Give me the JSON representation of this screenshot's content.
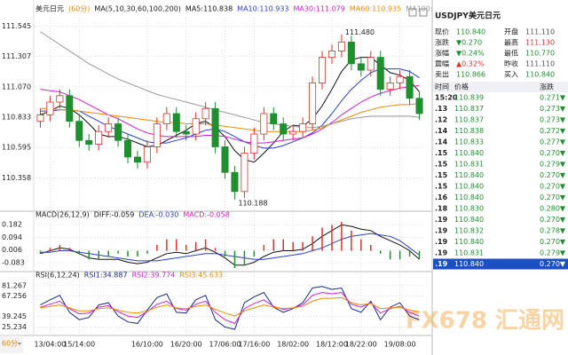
{
  "chart_data": [
    {
      "type": "candlestick",
      "title": "美元日元",
      "period_label": "(60分)",
      "indicator": "MA(5,10,30,60,100,200)",
      "categories": [
        null,
        "13/04:00",
        null,
        null,
        "15/14:00",
        null,
        null,
        null,
        null,
        null,
        null,
        "16/10:00",
        null,
        null,
        null,
        "16/20:00",
        null,
        null,
        null,
        "17/06:00",
        null,
        null,
        "17/16:00",
        null,
        null,
        null,
        "18/02:00",
        null,
        null,
        null,
        "18/12:00",
        null,
        null,
        "18/22:00",
        null,
        null,
        null,
        "19/08:00",
        null,
        null
      ],
      "open": [
        110.8,
        110.85,
        110.95,
        111.0,
        110.8,
        110.65,
        110.62,
        110.72,
        110.78,
        110.65,
        110.52,
        110.48,
        110.6,
        110.78,
        110.86,
        110.72,
        110.7,
        110.82,
        110.9,
        110.6,
        110.4,
        110.25,
        110.55,
        110.7,
        110.86,
        110.78,
        110.7,
        110.72,
        110.78,
        111.1,
        111.3,
        111.35,
        111.42,
        111.25,
        111.2,
        111.3,
        111.05,
        111.1,
        111.15,
        110.98
      ],
      "high": [
        110.9,
        111.0,
        111.05,
        111.05,
        110.85,
        110.7,
        110.77,
        110.83,
        110.83,
        110.7,
        110.57,
        110.65,
        110.83,
        110.91,
        110.91,
        110.77,
        110.87,
        110.95,
        110.95,
        110.65,
        110.45,
        110.6,
        110.75,
        110.91,
        110.91,
        110.83,
        110.77,
        110.83,
        111.15,
        111.35,
        111.4,
        111.48,
        111.47,
        111.3,
        111.35,
        111.35,
        111.15,
        111.2,
        111.2,
        111.03
      ],
      "low": [
        110.75,
        110.8,
        110.9,
        110.75,
        110.6,
        110.57,
        110.57,
        110.67,
        110.6,
        110.47,
        110.43,
        110.43,
        110.55,
        110.73,
        110.67,
        110.65,
        110.65,
        110.77,
        110.55,
        110.35,
        110.188,
        110.2,
        110.5,
        110.65,
        110.73,
        110.65,
        110.65,
        110.67,
        110.73,
        111.05,
        111.25,
        111.3,
        111.2,
        111.15,
        111.15,
        111.0,
        111.0,
        111.05,
        110.93,
        110.81
      ],
      "close": [
        110.85,
        110.95,
        111.0,
        110.8,
        110.65,
        110.62,
        110.72,
        110.78,
        110.65,
        110.52,
        110.48,
        110.6,
        110.78,
        110.86,
        110.72,
        110.7,
        110.82,
        110.9,
        110.6,
        110.4,
        110.25,
        110.55,
        110.7,
        110.86,
        110.78,
        110.7,
        110.72,
        110.78,
        111.1,
        111.3,
        111.35,
        111.42,
        111.25,
        111.2,
        111.3,
        111.05,
        111.1,
        111.15,
        110.98,
        110.86
      ],
      "up_color": "#e0302a",
      "down_color": "#1f8f2f",
      "series": [
        {
          "name": "MA5:110.838",
          "color": "#111111",
          "values": [
            110.85,
            110.88,
            110.92,
            110.9,
            110.85,
            110.78,
            110.7,
            110.68,
            110.68,
            110.66,
            110.63,
            110.6,
            110.61,
            110.65,
            110.69,
            110.73,
            110.78,
            110.8,
            110.75,
            110.68,
            110.57,
            110.5,
            110.48,
            110.55,
            110.63,
            110.72,
            110.77,
            110.76,
            110.82,
            110.92,
            111.05,
            111.19,
            111.28,
            111.3,
            111.3,
            111.24,
            111.18,
            111.16,
            111.12,
            111.03
          ]
        },
        {
          "name": "MA10:110.933",
          "color": "#2a3fd0",
          "values": [
            110.88,
            110.88,
            110.89,
            110.89,
            110.88,
            110.84,
            110.8,
            110.76,
            110.73,
            110.7,
            110.67,
            110.64,
            110.63,
            110.63,
            110.65,
            110.67,
            110.7,
            110.73,
            110.74,
            110.72,
            110.68,
            110.64,
            110.61,
            110.59,
            110.59,
            110.61,
            110.64,
            110.67,
            110.71,
            110.77,
            110.86,
            110.96,
            111.05,
            111.12,
            111.18,
            111.21,
            111.21,
            111.21,
            111.19,
            111.14
          ]
        },
        {
          "name": "MA30:111.079",
          "color": "#d020d0",
          "values": [
            111.05,
            111.04,
            111.03,
            111.0,
            110.97,
            110.93,
            110.89,
            110.85,
            110.82,
            110.78,
            110.74,
            110.71,
            110.69,
            110.68,
            110.68,
            110.68,
            110.68,
            110.69,
            110.69,
            110.68,
            110.66,
            110.64,
            110.63,
            110.63,
            110.64,
            110.65,
            110.66,
            110.67,
            110.7,
            110.74,
            110.79,
            110.85,
            110.9,
            110.95,
            110.99,
            111.02,
            111.04,
            111.06,
            111.07,
            111.08
          ]
        },
        {
          "name": "MA60:110.935",
          "color": "#f08a00",
          "values": [
            110.9,
            110.9,
            110.89,
            110.89,
            110.88,
            110.87,
            110.86,
            110.85,
            110.84,
            110.83,
            110.82,
            110.81,
            110.8,
            110.79,
            110.79,
            110.78,
            110.78,
            110.78,
            110.77,
            110.76,
            110.75,
            110.74,
            110.73,
            110.72,
            110.72,
            110.72,
            110.72,
            110.72,
            110.73,
            110.75,
            110.78,
            110.81,
            110.84,
            110.87,
            110.89,
            110.91,
            110.92,
            110.93,
            110.93,
            110.94
          ]
        },
        {
          "name": "MA100:",
          "color": "#9a9a9a",
          "values": [
            111.5,
            111.45,
            111.4,
            111.35,
            111.3,
            111.25,
            111.21,
            111.17,
            111.13,
            111.1,
            111.07,
            111.04,
            111.01,
            110.99,
            110.97,
            110.95,
            110.93,
            110.91,
            110.89,
            110.87,
            110.85,
            110.83,
            110.81,
            110.79,
            110.78,
            110.77,
            110.76,
            110.75,
            110.75,
            110.76,
            110.78,
            110.8,
            110.82,
            110.83,
            110.84,
            110.84,
            110.84,
            110.84,
            110.84,
            110.83
          ]
        }
      ],
      "high_label": "111.480",
      "low_label": "110.188",
      "ylim": [
        110.11,
        111.61
      ],
      "yticks": [
        111.545,
        111.307,
        {
          "value": 111.07,
          "label": "111.070"
        },
        110.833,
        110.595,
        110.358
      ],
      "grid": true
    },
    {
      "type": "macd",
      "indicator": "MACD(26,12,9)",
      "series": [
        {
          "name": "DIFF:-0.059",
          "color": "#111111",
          "values": [
            -0.02,
            0.0,
            0.02,
            0.01,
            -0.02,
            -0.05,
            -0.06,
            -0.06,
            -0.06,
            -0.08,
            -0.09,
            -0.08,
            -0.05,
            -0.02,
            -0.01,
            -0.02,
            0.0,
            0.02,
            -0.01,
            -0.05,
            -0.1,
            -0.1,
            -0.08,
            -0.04,
            -0.01,
            0.0,
            0.0,
            0.01,
            0.05,
            0.1,
            0.14,
            0.18,
            0.17,
            0.15,
            0.14,
            0.1,
            0.07,
            0.04,
            0.0,
            -0.059
          ]
        },
        {
          "name": "DEA:-0.030",
          "color": "#2a3fd0",
          "values": [
            -0.01,
            -0.01,
            0.0,
            0.0,
            -0.01,
            -0.02,
            -0.03,
            -0.04,
            -0.05,
            -0.06,
            -0.07,
            -0.07,
            -0.07,
            -0.06,
            -0.05,
            -0.04,
            -0.03,
            -0.02,
            -0.02,
            -0.03,
            -0.04,
            -0.05,
            -0.06,
            -0.06,
            -0.05,
            -0.04,
            -0.03,
            -0.02,
            0.0,
            0.02,
            0.05,
            0.08,
            0.1,
            0.11,
            0.12,
            0.11,
            0.1,
            0.07,
            0.02,
            -0.03
          ]
        },
        {
          "name": "MACD:-0.058",
          "color": "#d020d0",
          "bar": true,
          "up_color": "#e0302a",
          "down_color": "#1f8f2f",
          "values": [
            -0.02,
            0.02,
            0.04,
            0.02,
            -0.02,
            -0.06,
            -0.06,
            -0.04,
            -0.02,
            -0.04,
            -0.04,
            -0.02,
            0.04,
            0.08,
            0.08,
            0.04,
            0.06,
            0.08,
            0.02,
            -0.04,
            -0.12,
            -0.1,
            -0.04,
            0.04,
            0.08,
            0.08,
            0.06,
            0.06,
            0.1,
            0.16,
            0.18,
            0.2,
            0.14,
            0.08,
            0.04,
            -0.02,
            -0.06,
            -0.06,
            -0.04,
            -0.058
          ]
        }
      ],
      "ylim": [
        -0.12,
        0.25
      ],
      "yticks": [
        0.182,
        0.094,
        0.006,
        -0.083
      ],
      "grid": true
    },
    {
      "type": "line",
      "indicator": "RSI(6,12,24)",
      "series": [
        {
          "name": "RSI1:34.887",
          "color": "#1a2a8a",
          "values": [
            55,
            62,
            68,
            45,
            35,
            38,
            55,
            58,
            40,
            32,
            30,
            48,
            65,
            70,
            45,
            44,
            62,
            68,
            35,
            25,
            22,
            58,
            66,
            72,
            52,
            45,
            50,
            58,
            78,
            80,
            76,
            78,
            50,
            45,
            60,
            35,
            52,
            58,
            40,
            34.887
          ]
        },
        {
          "name": "RSI2:39.774",
          "color": "#d020d0",
          "values": [
            52,
            56,
            60,
            50,
            43,
            44,
            52,
            54,
            46,
            40,
            38,
            46,
            56,
            60,
            50,
            48,
            56,
            60,
            45,
            35,
            30,
            50,
            57,
            62,
            53,
            49,
            51,
            55,
            68,
            72,
            70,
            72,
            56,
            52,
            58,
            44,
            50,
            53,
            45,
            39.774
          ]
        },
        {
          "name": "RSI3:45.633",
          "color": "#f08a00",
          "values": [
            51,
            53,
            55,
            51,
            47,
            47,
            50,
            51,
            48,
            45,
            44,
            47,
            52,
            55,
            51,
            50,
            53,
            55,
            49,
            44,
            40,
            47,
            51,
            55,
            52,
            50,
            51,
            53,
            60,
            64,
            64,
            65,
            58,
            55,
            57,
            50,
            51,
            52,
            48,
            45.633
          ]
        }
      ],
      "ylim": [
        16,
        93
      ],
      "yticks": [
        81.267,
        67.256,
        39.245,
        25.234
      ],
      "grid": true
    }
  ],
  "period_footer": "60分",
  "watermark": "FX678 汇通网",
  "quote_panel": {
    "symbol": "USDJPY",
    "name": "美元日元",
    "rows": [
      [
        {
          "label": "现价",
          "value": "110.840",
          "color": "#1f8f2f"
        },
        {
          "label": "开盘",
          "value": "111.110",
          "color": "#555555"
        }
      ],
      [
        {
          "label": "涨跌",
          "value": "▼0.270",
          "color": "#1f8f2f"
        },
        {
          "label": "最高",
          "value": "111.130",
          "color": "#e0302a"
        }
      ],
      [
        {
          "label": "涨幅",
          "value": "▼0.24%",
          "color": "#1f8f2f"
        },
        {
          "label": "最低",
          "value": "110.770",
          "color": "#1f8f2f"
        }
      ],
      [
        {
          "label": "震幅",
          "value": "▲0.32%",
          "color": "#e0302a"
        },
        {
          "label": "昨收",
          "value": "111.110",
          "color": "#555555"
        }
      ],
      [
        {
          "label": "卖出",
          "value": "110.866",
          "color": "#1f8f2f"
        },
        {
          "label": "买入",
          "value": "110.840",
          "color": "#1f8f2f"
        }
      ]
    ],
    "tick_header": [
      "时间",
      "价格",
      "涨跌"
    ],
    "ticks": [
      [
        "15:20",
        "110.839",
        "0.271▼"
      ],
      [
        ".13",
        "110.837",
        "0.273▼"
      ],
      [
        ".12",
        "110.837",
        "0.273▼"
      ],
      [
        ".14",
        "110.838",
        "0.272▼"
      ],
      [
        ".14",
        "110.833",
        "0.277▼"
      ],
      [
        ".15",
        "110.840",
        "0.270▼"
      ],
      [
        ".15",
        "110.831",
        "0.279▼"
      ],
      [
        ".15",
        "110.840",
        "0.270▼"
      ],
      [
        ".15",
        "110.840",
        "0.270▼"
      ],
      [
        ".16",
        "110.840",
        "0.270▼"
      ],
      [
        ".18",
        "110.830",
        "0.280▼"
      ],
      [
        ".19",
        "110.840",
        "0.270▼"
      ],
      [
        ".19",
        "110.832",
        "0.278▼"
      ],
      [
        ".19",
        "110.840",
        "0.270▼"
      ],
      [
        ".19",
        "110.831",
        "0.279▼"
      ],
      [
        ".19",
        "110.840",
        "0.270▼"
      ]
    ],
    "price_color": "#1f8f2f",
    "highlight_color": "#1c4fc2"
  }
}
